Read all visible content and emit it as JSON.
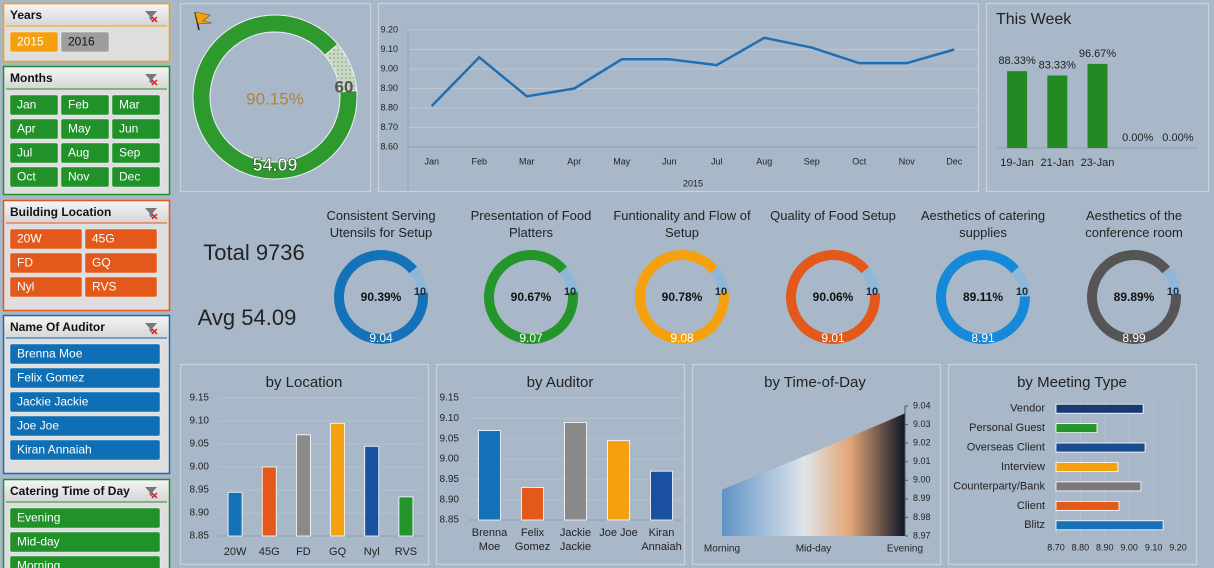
{
  "slicers": [
    {
      "title": "Years",
      "items": [
        "2015",
        "2016"
      ],
      "color": "#f5a00f",
      "border": "#f5a00f",
      "item_colors": [
        "#f5a00f",
        "#9e9e9e"
      ],
      "item_text_colors": [
        "#ffffff",
        "#111111"
      ]
    },
    {
      "title": "Months",
      "items": [
        "Jan",
        "Feb",
        "Mar",
        "Apr",
        "May",
        "Jun",
        "Jul",
        "Aug",
        "Sep",
        "Oct",
        "Nov",
        "Dec"
      ],
      "color": "#21912a",
      "border": "#21912a"
    },
    {
      "title": "Building Location",
      "items": [
        "20W",
        "45G",
        "FD",
        "GQ",
        "Nyl",
        "RVS"
      ],
      "color": "#e2591b",
      "border": "#e2591b"
    },
    {
      "title": "Name Of Auditor",
      "items": [
        "Brenna Moe",
        "Felix Gomez",
        "Jackie Jackie",
        "Joe Joe",
        "Kiran Annaiah"
      ],
      "color": "#0f6fb4",
      "border": "#0f6fb4"
    },
    {
      "title": "Catering Time of Day",
      "items": [
        "Evening",
        "Mid-day",
        "Morning"
      ],
      "color": "#21912a",
      "border": "#21912a"
    }
  ],
  "summary": {
    "total": "Total 9736",
    "avg": "Avg 54.09"
  },
  "chart_data": [
    {
      "type": "donut",
      "value": 54.09,
      "max": 60,
      "center_label": "90.15%",
      "color": "#2e9a2e",
      "remainder_color": "#c9d9c2"
    },
    {
      "type": "line",
      "categories": [
        "Jan",
        "Feb",
        "Mar",
        "Apr",
        "May",
        "Jun",
        "Jul",
        "Aug",
        "Sep",
        "Oct",
        "Nov",
        "Dec"
      ],
      "values": [
        8.81,
        9.06,
        8.86,
        8.9,
        9.05,
        9.05,
        9.02,
        9.16,
        9.11,
        9.03,
        9.03,
        9.1
      ],
      "color": "#1f6fb5",
      "x_label": "2015",
      "ylim": [
        8.6,
        9.2
      ],
      "yticks": [
        {
          "value": 8.6,
          "label": "8.60"
        },
        {
          "value": 8.7,
          "label": "8.70"
        },
        {
          "value": 8.8,
          "label": "8.80"
        },
        {
          "value": 8.9,
          "label": "8.90"
        },
        {
          "value": 9,
          "label": "9.00"
        },
        {
          "value": 9.1,
          "label": "9.10"
        },
        {
          "value": 9.2,
          "label": "9.20"
        }
      ],
      "grid": true
    },
    {
      "type": "bar",
      "title": "This Week",
      "categories": [
        "19-Jan",
        "21-Jan",
        "23-Jan",
        null,
        null
      ],
      "values": [
        88.33,
        83.33,
        96.67,
        0,
        0
      ],
      "value_labels": [
        "88.33%",
        "83.33%",
        "96.67%",
        "0.00%",
        "0.00%"
      ],
      "color": "#238a23",
      "ylim": [
        0,
        100
      ]
    },
    {
      "type": "donut",
      "title": "Consistent Serving Utensils for Setup",
      "value": 9.04,
      "max": 10,
      "center_label": "90.39%",
      "color": "#1372b8",
      "remainder_color": "#8fb8d8"
    },
    {
      "type": "donut",
      "title": "Presentation of Food Platters",
      "value": 9.07,
      "max": 10,
      "center_label": "90.67%",
      "color": "#24952a",
      "remainder_color": "#8fb8d8"
    },
    {
      "type": "donut",
      "title": "Funtionality and Flow of Setup",
      "value": 9.08,
      "max": 10,
      "center_label": "90.78%",
      "color": "#f5a00f",
      "remainder_color": "#8fb8d8"
    },
    {
      "type": "donut",
      "title": "Quality of Food Setup",
      "value": 9.01,
      "max": 10,
      "center_label": "90.06%",
      "color": "#e2591b",
      "remainder_color": "#8fb8d8"
    },
    {
      "type": "donut",
      "title": "Aesthetics of catering supplies",
      "value": 8.91,
      "max": 10,
      "center_label": "89.11%",
      "color": "#168ad8",
      "remainder_color": "#8fb8d8"
    },
    {
      "type": "donut",
      "title": "Aesthetics of the conference room",
      "value": 8.99,
      "max": 10,
      "center_label": "89.89%",
      "color": "#555555",
      "remainder_color": "#8fb8d8"
    },
    {
      "type": "bar",
      "title": "by Location",
      "categories": [
        "20W",
        "45G",
        "FD",
        "GQ",
        "Nyl",
        "RVS"
      ],
      "values": [
        8.945,
        9.0,
        9.07,
        9.095,
        9.045,
        8.935
      ],
      "colors": [
        "#1372b8",
        "#e2591b",
        "#8a8a8a",
        "#f5a00f",
        "#1a50a0",
        "#24952a"
      ],
      "ylim": [
        8.85,
        9.15
      ],
      "yticks": [
        8.85,
        {
          "value": 8.9,
          "label": "8.90"
        },
        8.95,
        {
          "value": 9,
          "label": "9.00"
        },
        9.05,
        {
          "value": 9.1,
          "label": "9.10"
        },
        9.15
      ]
    },
    {
      "type": "bar",
      "title": "by Auditor",
      "categories": [
        "Brenna Moe",
        "Felix Gomez",
        "Jackie Jackie",
        "Joe Joe",
        "Kiran Annaiah"
      ],
      "values": [
        9.07,
        8.93,
        9.09,
        9.045,
        8.97
      ],
      "colors": [
        "#1372b8",
        "#e2591b",
        "#8a8a8a",
        "#f5a00f",
        "#1a50a0"
      ],
      "ylim": [
        8.85,
        9.15
      ],
      "yticks": [
        8.85,
        {
          "value": 8.9,
          "label": "8.90"
        },
        8.95,
        {
          "value": 9,
          "label": "9.00"
        },
        9.05,
        {
          "value": 9.1,
          "label": "9.10"
        },
        9.15
      ]
    },
    {
      "type": "area",
      "title": "by Time-of-Day",
      "categories": [
        "Morning",
        "Mid-day",
        "Evening"
      ],
      "values": [
        8.995,
        9.015,
        9.036
      ],
      "ylim": [
        8.97,
        9.04
      ],
      "yticks": [
        8.97,
        8.98,
        8.99,
        {
          "value": 9,
          "label": "9.00"
        },
        9.01,
        9.02,
        9.03,
        9.04
      ]
    },
    {
      "type": "hbar",
      "title": "by Meeting Type",
      "categories": [
        "Vendor",
        "Personal Guest",
        "Overseas Client",
        "Interview",
        "Counterparty/Bank",
        "Client",
        "Blitz"
      ],
      "values": [
        9.057,
        8.868,
        9.065,
        8.954,
        9.048,
        8.958,
        9.139
      ],
      "colors": [
        "#173a70",
        "#24952a",
        "#1a4a90",
        "#f5a00f",
        "#7a7a7a",
        "#e2591b",
        "#1372b8"
      ],
      "xlim": [
        8.7,
        9.2
      ],
      "xticks": [
        {
          "value": 8.7,
          "label": "8.70"
        },
        {
          "value": 8.8,
          "label": "8.80"
        },
        {
          "value": 8.9,
          "label": "8.90"
        },
        {
          "value": 9,
          "label": "9.00"
        },
        {
          "value": 9.1,
          "label": "9.10"
        },
        {
          "value": 9.2,
          "label": "9.20"
        }
      ]
    }
  ]
}
